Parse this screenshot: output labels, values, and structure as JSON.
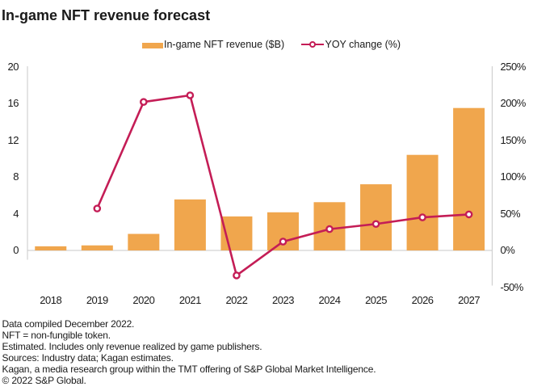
{
  "title": "In-game NFT revenue forecast",
  "legend": {
    "bar_label": "In-game NFT revenue ($B)",
    "line_label": "YOY change (%)"
  },
  "colors": {
    "bar": "#F0A64D",
    "line": "#C41D56",
    "marker_fill": "#FFFFFF",
    "axis_line": "#C9C9C9",
    "text": "#1A1A1A"
  },
  "chart_data": {
    "type": "bar",
    "subtype": "combo bar + line, dual axis",
    "title": "In-game NFT revenue forecast",
    "categories": [
      "2018",
      "2019",
      "2020",
      "2021",
      "2022",
      "2023",
      "2024",
      "2025",
      "2026",
      "2027"
    ],
    "series": [
      {
        "name": "In-game NFT revenue ($B)",
        "type": "bar",
        "axis": "left",
        "values": [
          0.45,
          0.55,
          1.8,
          5.55,
          3.7,
          4.15,
          5.25,
          7.2,
          10.4,
          15.5
        ]
      },
      {
        "name": "YOY change (%)",
        "type": "line",
        "axis": "right",
        "values": [
          null,
          57,
          202,
          211,
          -34,
          12,
          29,
          36,
          45,
          49
        ]
      }
    ],
    "left_axis": {
      "label": "",
      "tick_labels": [
        "0",
        "4",
        "8",
        "12",
        "16",
        "20"
      ],
      "tick_values": [
        0,
        4,
        8,
        12,
        16,
        20
      ],
      "range": [
        -1,
        20
      ]
    },
    "right_axis": {
      "label": "",
      "tick_labels": [
        "-50%",
        "0%",
        "50%",
        "100%",
        "150%",
        "200%",
        "250%"
      ],
      "tick_values": [
        -50,
        0,
        50,
        100,
        150,
        200,
        250
      ],
      "range": [
        -50,
        250
      ]
    },
    "grid": "zero line only",
    "legend_position": "top center"
  },
  "footnotes": [
    "Data compiled December 2022.",
    "NFT = non-fungible token.",
    "Estimated. Includes only revenue realized by game publishers.",
    "Sources: Industry data; Kagan estimates.",
    "Kagan, a media research group within the TMT offering of S&P Global Market Intelligence.",
    "© 2022 S&P Global."
  ]
}
